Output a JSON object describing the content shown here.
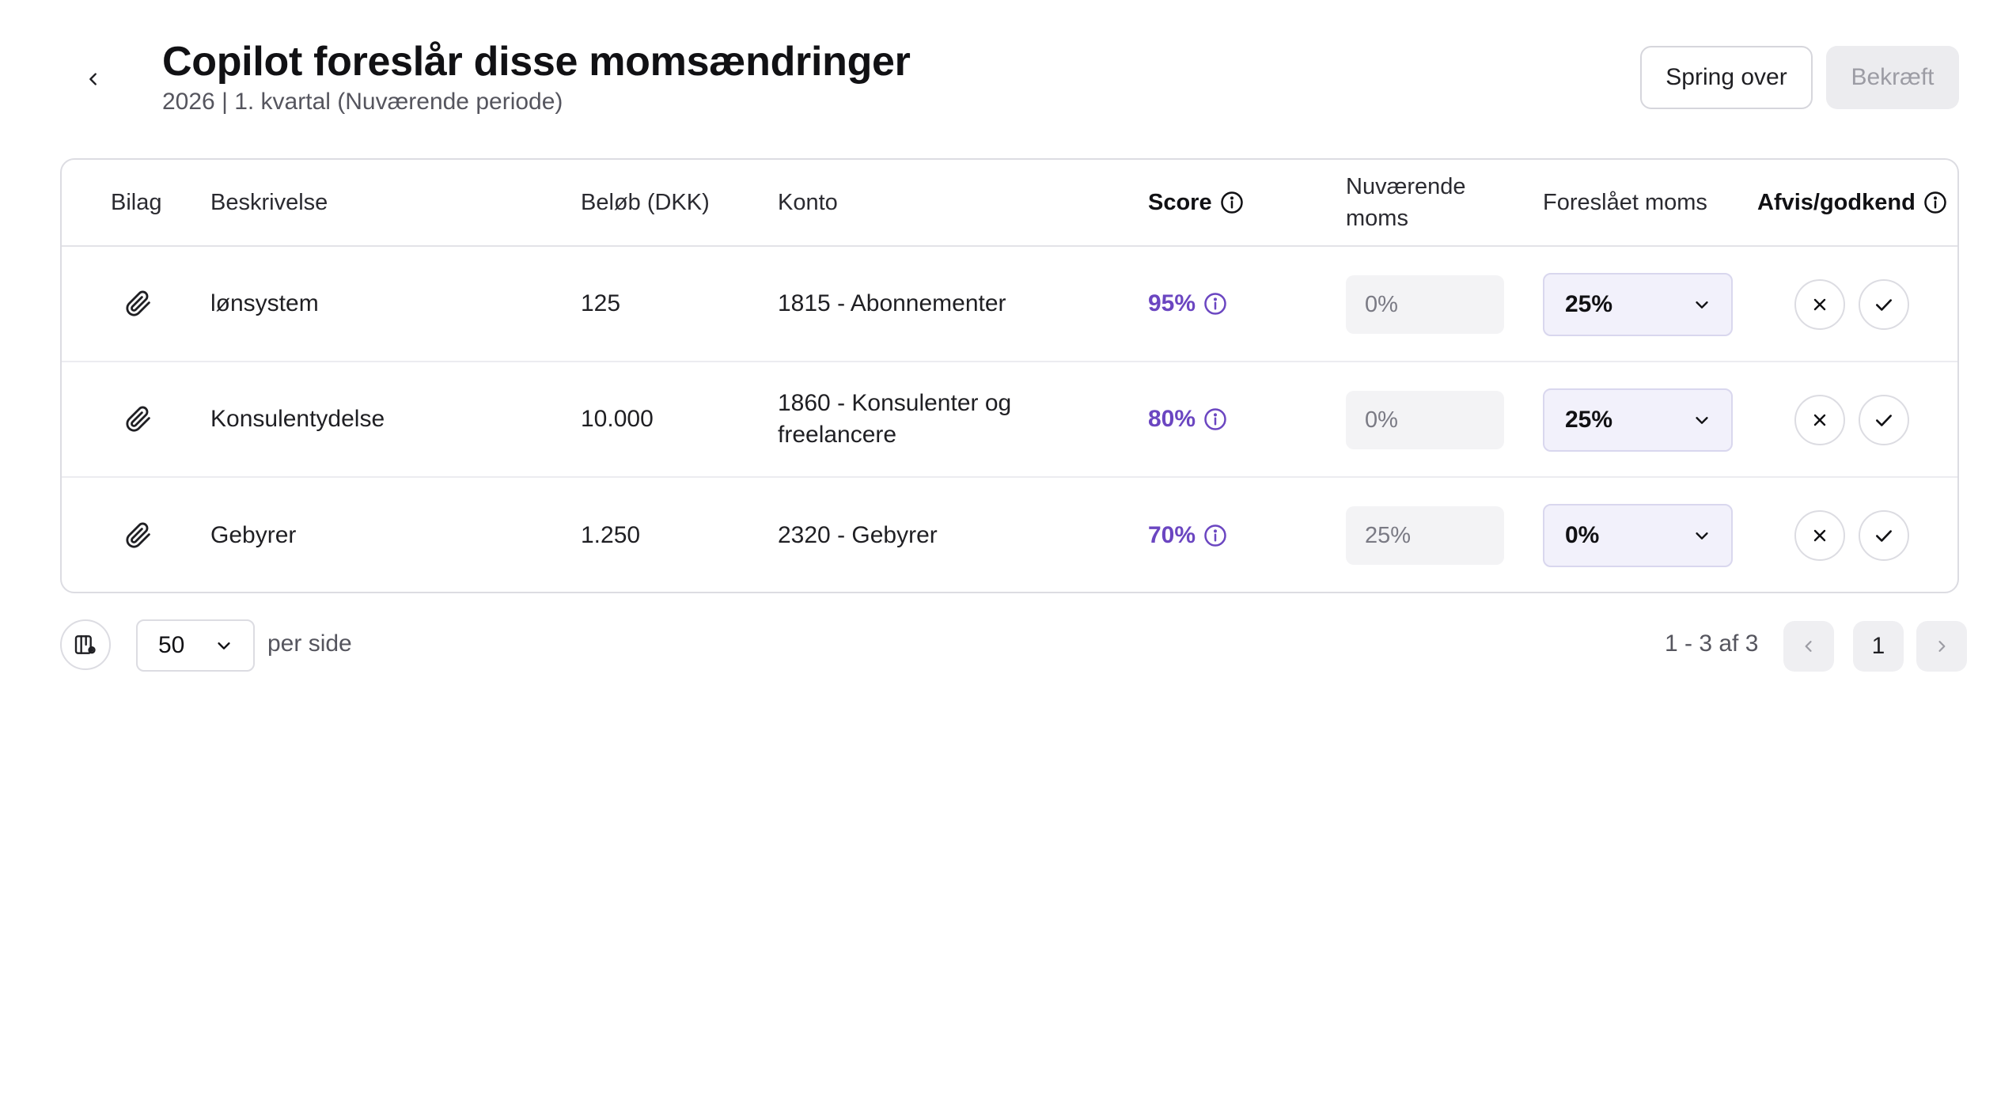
{
  "header": {
    "title": "Copilot foreslår disse momsændringer",
    "subtitle": "2026 | 1. kvartal (Nuværende periode)",
    "skip_label": "Spring over",
    "confirm_label": "Bekræft"
  },
  "table": {
    "columns": {
      "bilag": "Bilag",
      "beskrivelse": "Beskrivelse",
      "belob": "Beløb (DKK)",
      "konto": "Konto",
      "score": "Score",
      "nuvaerende_moms": "Nuværende moms",
      "foreslaet_moms": "Foreslået moms",
      "afvis_godkend": "Afvis/godkend"
    },
    "rows": [
      {
        "description": "lønsystem",
        "amount": "125",
        "account": "1815 - Abonnementer",
        "score": "95%",
        "current_vat": "0%",
        "suggested_vat": "25%"
      },
      {
        "description": "Konsulentydelse",
        "amount": "10.000",
        "account": "1860 - Konsulenter og freelancere",
        "score": "80%",
        "current_vat": "0%",
        "suggested_vat": "25%"
      },
      {
        "description": "Gebyrer",
        "amount": "1.250",
        "account": "2320 - Gebyrer",
        "score": "70%",
        "current_vat": "25%",
        "suggested_vat": "0%"
      }
    ]
  },
  "footer": {
    "per_page_value": "50",
    "per_page_label": "per side",
    "range_text": "1 - 3 af 3",
    "current_page": "1"
  },
  "icons": {
    "back": "chevron-left-icon",
    "attachment": "paperclip-icon",
    "info": "info-icon",
    "dropdown": "chevron-down-icon",
    "reject": "close-icon",
    "approve": "check-icon",
    "columns": "column-settings-icon",
    "prev": "chevron-left-icon",
    "next": "chevron-right-icon"
  },
  "colors": {
    "score": "#6b46c1",
    "border": "#dcdce2",
    "suggested_bg": "#f2f1fb",
    "current_bg": "#f3f3f5"
  }
}
